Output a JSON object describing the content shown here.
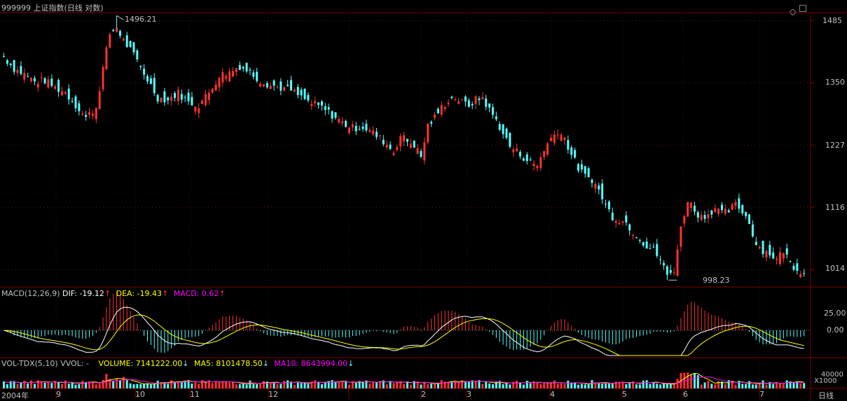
{
  "colors": {
    "background": "#000000",
    "up": "#ff3232",
    "down": "#54ffff",
    "frame": "#800000",
    "dif_line": "#ffffff",
    "dea_line": "#ffff00",
    "macd_label": "#ff00ff",
    "volume_label": "#ffff00",
    "ma5_line": "#ffff00",
    "ma10_line": "#ff00ff",
    "text": "#c0c0c0"
  },
  "header": {
    "title": "999999 上证指数(日线 对数)",
    "icons": [
      "diamond-icon",
      "window-restore-icon"
    ]
  },
  "price_panel": {
    "high_label": "1496.21",
    "low_label": "998.23",
    "y_ticks": [
      "1485",
      "1350",
      "1227",
      "1116",
      "1014"
    ]
  },
  "macd_panel": {
    "name": "MACD(12,26,9)",
    "dif": "DIF: -19.12",
    "dea": "DEA: -19.43",
    "macd": "MACD: 0.62",
    "arrow": "↑",
    "y_ticks": [
      "25.00",
      "0.00"
    ]
  },
  "volume_panel": {
    "name": "VOL-TDX(5,10)",
    "vvol": "VVOL: -",
    "volume": "VOLUME: 7141222.00",
    "ma5": "MA5: 8101478.50",
    "ma10": "MA10: 8643994.00",
    "arrow": "↓",
    "y_ticks": [
      "40000"
    ],
    "unit": "X1000"
  },
  "x_axis": {
    "labels": [
      "2004年",
      "9",
      "10",
      "11",
      "12",
      "2",
      "3",
      "4",
      "5",
      "6",
      "7"
    ],
    "period": "日线"
  },
  "chart_data": {
    "type": "candlestick",
    "symbol": "999999",
    "name": "上证指数",
    "period": "日线",
    "scale": "log",
    "ylim": [
      990,
      1500
    ],
    "y_ticks": [
      1485,
      1350,
      1227,
      1116,
      1014
    ],
    "high": 1496.21,
    "low": 998.23,
    "close_path": [
      [
        0,
        1405
      ],
      [
        3,
        1380
      ],
      [
        6,
        1368
      ],
      [
        9,
        1352
      ],
      [
        12,
        1355
      ],
      [
        15,
        1340
      ],
      [
        18,
        1330
      ],
      [
        21,
        1305
      ],
      [
        24,
        1280
      ],
      [
        27,
        1300
      ],
      [
        29,
        1380
      ],
      [
        31,
        1455
      ],
      [
        33,
        1470
      ],
      [
        35,
        1440
      ],
      [
        37,
        1420
      ],
      [
        39,
        1395
      ],
      [
        41,
        1370
      ],
      [
        43,
        1345
      ],
      [
        45,
        1320
      ],
      [
        48,
        1315
      ],
      [
        51,
        1330
      ],
      [
        54,
        1310
      ],
      [
        57,
        1305
      ],
      [
        60,
        1330
      ],
      [
        63,
        1365
      ],
      [
        66,
        1372
      ],
      [
        69,
        1385
      ],
      [
        72,
        1372
      ],
      [
        75,
        1355
      ],
      [
        78,
        1345
      ],
      [
        81,
        1340
      ],
      [
        84,
        1335
      ],
      [
        87,
        1320
      ],
      [
        90,
        1308
      ],
      [
        93,
        1300
      ],
      [
        96,
        1285
      ],
      [
        99,
        1270
      ],
      [
        102,
        1260
      ],
      [
        105,
        1262
      ],
      [
        108,
        1250
      ],
      [
        111,
        1235
      ],
      [
        114,
        1215
      ],
      [
        116,
        1245
      ],
      [
        118,
        1235
      ],
      [
        120,
        1228
      ],
      [
        122,
        1205
      ],
      [
        124,
        1265
      ],
      [
        126,
        1280
      ],
      [
        128,
        1300
      ],
      [
        130,
        1315
      ],
      [
        132,
        1320
      ],
      [
        134,
        1310
      ],
      [
        136,
        1305
      ],
      [
        138,
        1315
      ],
      [
        140,
        1320
      ],
      [
        142,
        1295
      ],
      [
        144,
        1275
      ],
      [
        146,
        1250
      ],
      [
        148,
        1225
      ],
      [
        150,
        1215
      ],
      [
        152,
        1205
      ],
      [
        154,
        1195
      ],
      [
        156,
        1190
      ],
      [
        158,
        1220
      ],
      [
        160,
        1240
      ],
      [
        162,
        1255
      ],
      [
        164,
        1240
      ],
      [
        166,
        1210
      ],
      [
        168,
        1185
      ],
      [
        170,
        1170
      ],
      [
        172,
        1165
      ],
      [
        174,
        1145
      ],
      [
        176,
        1120
      ],
      [
        178,
        1100
      ],
      [
        180,
        1095
      ],
      [
        182,
        1090
      ],
      [
        184,
        1075
      ],
      [
        186,
        1065
      ],
      [
        188,
        1050
      ],
      [
        190,
        1045
      ],
      [
        192,
        1030
      ],
      [
        194,
        1005
      ],
      [
        196,
        1015
      ],
      [
        198,
        1080
      ],
      [
        200,
        1130
      ],
      [
        202,
        1110
      ],
      [
        204,
        1100
      ],
      [
        206,
        1105
      ],
      [
        208,
        1115
      ],
      [
        210,
        1105
      ],
      [
        212,
        1110
      ],
      [
        214,
        1120
      ],
      [
        216,
        1110
      ],
      [
        218,
        1090
      ],
      [
        220,
        1055
      ],
      [
        222,
        1045
      ],
      [
        224,
        1040
      ],
      [
        226,
        1030
      ],
      [
        228,
        1045
      ],
      [
        230,
        1025
      ],
      [
        232,
        1015
      ],
      [
        234,
        1012
      ]
    ],
    "macd": {
      "ylim": [
        -45,
        45
      ],
      "y_ticks": [
        25,
        0
      ],
      "dif_last": -19.12,
      "dea_last": -19.43,
      "macd_last": 0.62
    },
    "volume": {
      "unit": "X1000",
      "y_ticks": [
        40000
      ],
      "volume_last": 7141222.0,
      "ma5_last": 8101478.5,
      "ma10_last": 8643994.0
    }
  }
}
